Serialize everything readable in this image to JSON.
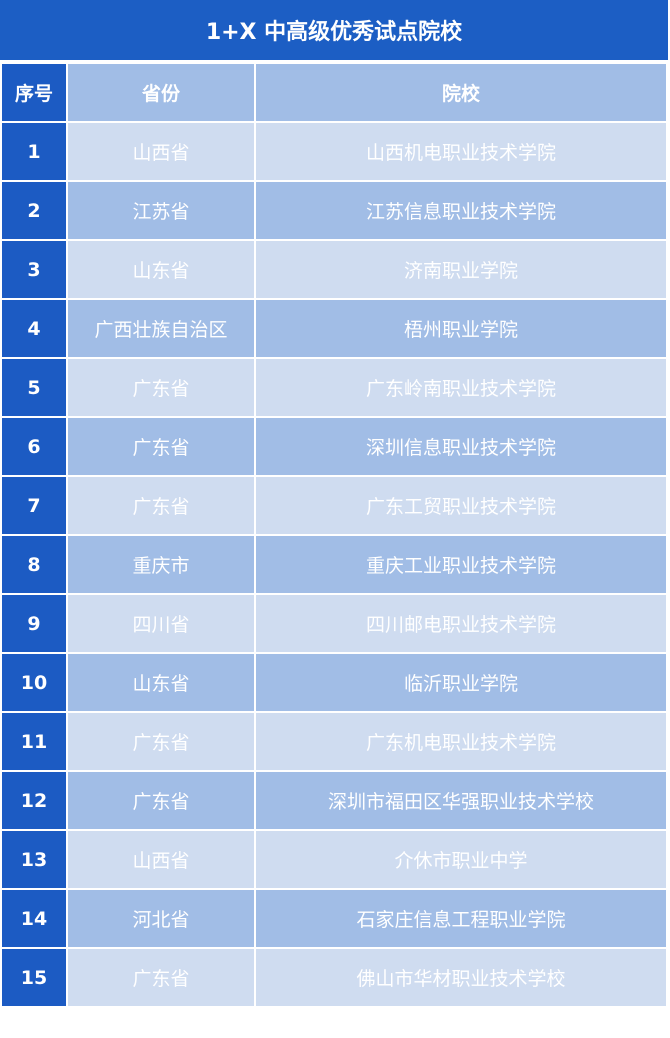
{
  "title": "1+X 中高级优秀试点院校",
  "headers": [
    "序号",
    "省份",
    "院校"
  ],
  "colors": {
    "title_bg": "#1c5ec4",
    "index_bg": "#1c5bc3",
    "row_dark": "#a1bde6",
    "row_light": "#cfdcf0",
    "text": "#ffffff"
  },
  "rows": [
    {
      "no": "1",
      "province": "山西省",
      "school": "山西机电职业技术学院"
    },
    {
      "no": "2",
      "province": "江苏省",
      "school": "江苏信息职业技术学院"
    },
    {
      "no": "3",
      "province": "山东省",
      "school": "济南职业学院"
    },
    {
      "no": "4",
      "province": "广西壮族自治区",
      "school": "梧州职业学院"
    },
    {
      "no": "5",
      "province": "广东省",
      "school": "广东岭南职业技术学院"
    },
    {
      "no": "6",
      "province": "广东省",
      "school": "深圳信息职业技术学院"
    },
    {
      "no": "7",
      "province": "广东省",
      "school": "广东工贸职业技术学院"
    },
    {
      "no": "8",
      "province": "重庆市",
      "school": "重庆工业职业技术学院"
    },
    {
      "no": "9",
      "province": "四川省",
      "school": "四川邮电职业技术学院"
    },
    {
      "no": "10",
      "province": "山东省",
      "school": "临沂职业学院"
    },
    {
      "no": "11",
      "province": "广东省",
      "school": "广东机电职业技术学院"
    },
    {
      "no": "12",
      "province": "广东省",
      "school": "深圳市福田区华强职业技术学校"
    },
    {
      "no": "13",
      "province": "山西省",
      "school": "介休市职业中学"
    },
    {
      "no": "14",
      "province": "河北省",
      "school": "石家庄信息工程职业学院"
    },
    {
      "no": "15",
      "province": "广东省",
      "school": "佛山市华材职业技术学校"
    }
  ]
}
